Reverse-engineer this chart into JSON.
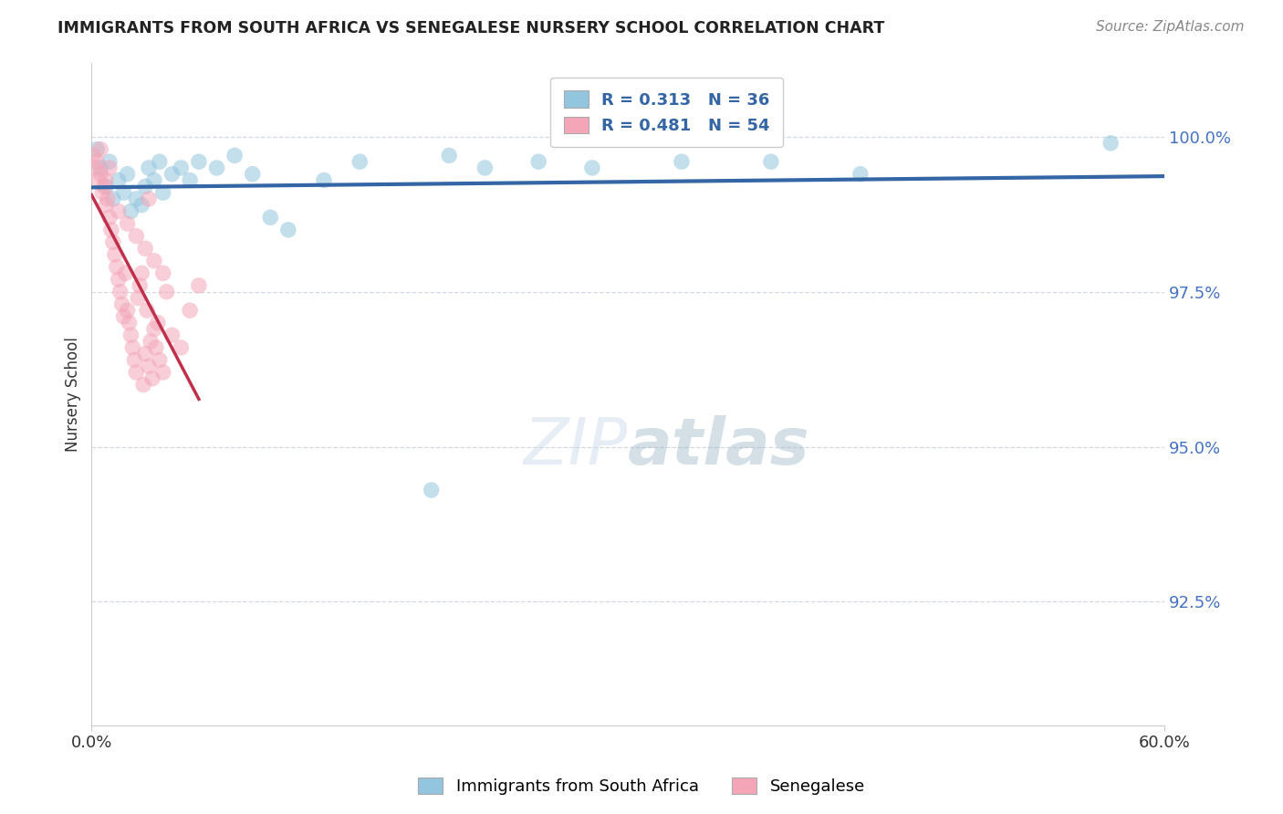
{
  "title": "IMMIGRANTS FROM SOUTH AFRICA VS SENEGALESE NURSERY SCHOOL CORRELATION CHART",
  "source": "Source: ZipAtlas.com",
  "ylabel": "Nursery School",
  "x_min": 0.0,
  "x_max": 60.0,
  "y_min": 90.5,
  "y_max": 101.2,
  "x_ticks": [
    0.0,
    60.0
  ],
  "x_tick_labels": [
    "0.0%",
    "60.0%"
  ],
  "y_ticks": [
    92.5,
    95.0,
    97.5,
    100.0
  ],
  "y_tick_labels": [
    "92.5%",
    "95.0%",
    "97.5%",
    "100.0%"
  ],
  "legend_label1": "Immigrants from South Africa",
  "legend_label2": "Senegalese",
  "legend_R1": "R = 0.313",
  "legend_N1": "N = 36",
  "legend_R2": "R = 0.481",
  "legend_N2": "N = 54",
  "blue_color": "#92C5DE",
  "pink_color": "#F4A6B8",
  "blue_line_color": "#3465a4",
  "pink_line_color": "#C0304A",
  "grid_color": "#c8d0dc",
  "background_color": "#ffffff",
  "blue_scatter_x": [
    0.3,
    0.5,
    0.8,
    1.0,
    1.2,
    1.5,
    1.8,
    2.0,
    2.2,
    2.5,
    2.8,
    3.0,
    3.2,
    3.5,
    3.8,
    4.0,
    4.5,
    5.0,
    5.5,
    6.0,
    7.0,
    8.0,
    9.0,
    10.0,
    11.0,
    13.0,
    15.0,
    20.0,
    22.0,
    25.0,
    28.0,
    33.0,
    38.0,
    43.0,
    57.0,
    19.0
  ],
  "blue_scatter_y": [
    99.8,
    99.5,
    99.2,
    99.6,
    99.0,
    99.3,
    99.1,
    99.4,
    98.8,
    99.0,
    98.9,
    99.2,
    99.5,
    99.3,
    99.6,
    99.1,
    99.4,
    99.5,
    99.3,
    99.6,
    99.5,
    99.7,
    99.4,
    98.7,
    98.5,
    99.3,
    99.6,
    99.7,
    99.5,
    99.6,
    99.5,
    99.6,
    99.6,
    99.4,
    99.9,
    94.3
  ],
  "pink_scatter_x": [
    0.1,
    0.2,
    0.3,
    0.4,
    0.5,
    0.5,
    0.6,
    0.7,
    0.8,
    0.9,
    1.0,
    1.0,
    1.1,
    1.2,
    1.3,
    1.4,
    1.5,
    1.6,
    1.7,
    1.8,
    1.9,
    2.0,
    2.1,
    2.2,
    2.3,
    2.4,
    2.5,
    2.6,
    2.7,
    2.8,
    2.9,
    3.0,
    3.1,
    3.2,
    3.3,
    3.4,
    3.5,
    3.6,
    3.7,
    3.8,
    4.0,
    4.2,
    4.5,
    5.0,
    5.5,
    6.0,
    3.2,
    0.8,
    1.5,
    2.0,
    2.5,
    3.0,
    3.5,
    4.0
  ],
  "pink_scatter_y": [
    99.7,
    99.5,
    99.6,
    99.3,
    99.4,
    99.8,
    99.1,
    99.2,
    98.9,
    99.0,
    98.7,
    99.5,
    98.5,
    98.3,
    98.1,
    97.9,
    97.7,
    97.5,
    97.3,
    97.1,
    97.8,
    97.2,
    97.0,
    96.8,
    96.6,
    96.4,
    96.2,
    97.4,
    97.6,
    97.8,
    96.0,
    96.5,
    97.2,
    96.3,
    96.7,
    96.1,
    96.9,
    96.6,
    97.0,
    96.4,
    96.2,
    97.5,
    96.8,
    96.6,
    97.2,
    97.6,
    99.0,
    99.3,
    98.8,
    98.6,
    98.4,
    98.2,
    98.0,
    97.8
  ]
}
